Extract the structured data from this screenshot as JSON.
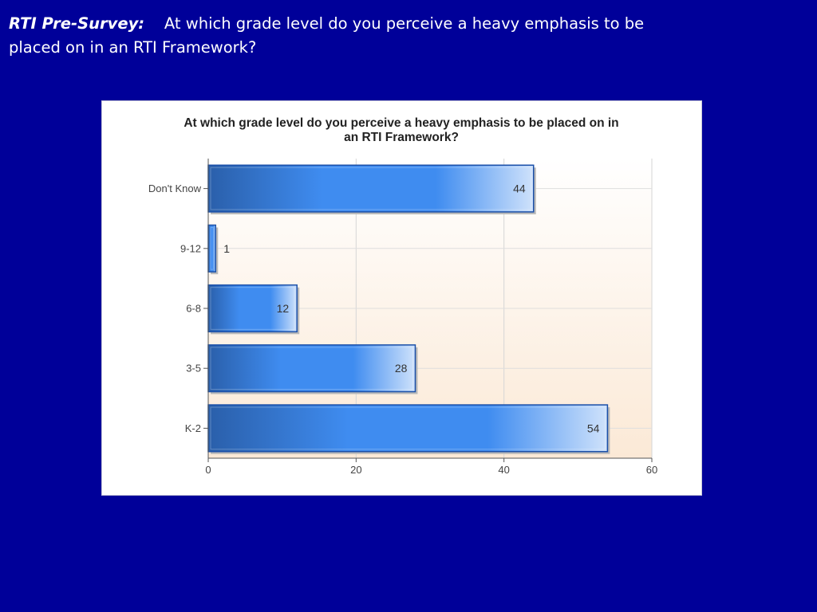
{
  "slide": {
    "heading_lead": "RTI Pre-Survey:",
    "heading_text": "At which grade level do you perceive a heavy emphasis to be placed on in an RTI Framework?"
  },
  "chart_data": {
    "type": "bar",
    "orientation": "horizontal",
    "title_lines": [
      "At which grade level do you perceive a heavy emphasis to be placed on in",
      "an RTI Framework?"
    ],
    "categories": [
      "Don't Know",
      "9-12",
      "6-8",
      "3-5",
      "K-2"
    ],
    "values": [
      44,
      1,
      12,
      28,
      54
    ],
    "xlim": [
      0,
      60
    ],
    "x_ticks": [
      0,
      20,
      40,
      60
    ],
    "xlabel": "",
    "ylabel": "",
    "grid": true,
    "legend": "none",
    "colors": {
      "bar_dark": "#2a5faa",
      "bar_mid": "#3f8cf0",
      "bar_light": "#cfe2fb",
      "bar_border": "#1a4fa8",
      "plot_bg_top": "#ffffff",
      "plot_bg_bottom": "#fbe9d6",
      "slide_bg": "#000099"
    }
  }
}
